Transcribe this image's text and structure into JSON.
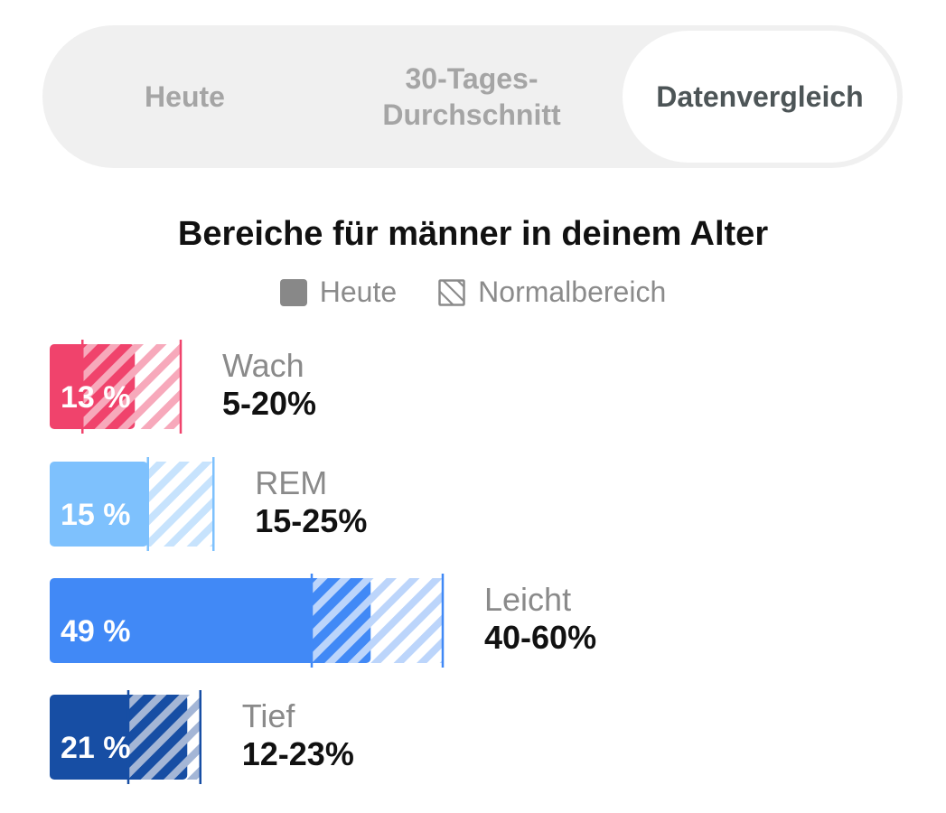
{
  "tabs": [
    {
      "label": "Heute",
      "selected": false
    },
    {
      "label": "30-Tages-\nDurchschnitt",
      "selected": false
    },
    {
      "label": "Datenvergleich",
      "selected": true
    }
  ],
  "heading": "Bereiche für männer in deinem Alter",
  "legend": {
    "today_label": "Heute",
    "range_label": "Normalbereich"
  },
  "stages": [
    {
      "name": "Wach",
      "value": 13,
      "value_label": "13 %",
      "range_min": 5,
      "range_max": 20,
      "range_label": "5-20%",
      "color": "#f0436c",
      "hatch_color": "#f7a9bb"
    },
    {
      "name": "REM",
      "value": 15,
      "value_label": "15 %",
      "range_min": 15,
      "range_max": 25,
      "range_label": "15-25%",
      "color": "#7ec1fd",
      "hatch_color": "#c7e3fd"
    },
    {
      "name": "Leicht",
      "value": 49,
      "value_label": "49 %",
      "range_min": 40,
      "range_max": 60,
      "range_label": "40-60%",
      "color": "#4189f6",
      "hatch_color": "#bcd5fb"
    },
    {
      "name": "Tief",
      "value": 21,
      "value_label": "21 %",
      "range_min": 12,
      "range_max": 23,
      "range_label": "12-23%",
      "color": "#174ea4",
      "hatch_color": "#a4b6d6"
    }
  ]
}
